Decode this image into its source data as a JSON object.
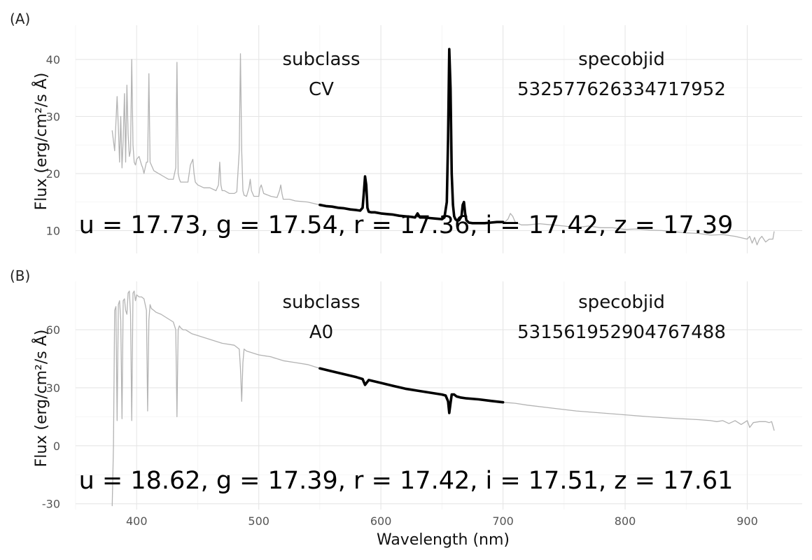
{
  "chart_data": [
    {
      "type": "line",
      "panel_label": "(A)",
      "xlabel": "Wavelength (nm)",
      "ylabel": "Flux (erg/cm²/s Å)",
      "xlim": [
        350,
        945
      ],
      "ylim": [
        6,
        46
      ],
      "x_ticks": [
        400,
        500,
        600,
        700,
        800,
        900
      ],
      "y_ticks": [
        10,
        20,
        30,
        40
      ],
      "grid": true,
      "series": [
        {
          "role": "full spectrum",
          "color": "#b3b3b3",
          "x": [
            380,
            382,
            384,
            385,
            386,
            387,
            388,
            389,
            390,
            391,
            392,
            393,
            394,
            395,
            396,
            397,
            398,
            399,
            400,
            402,
            404,
            405,
            406,
            407,
            408,
            409,
            410,
            411,
            412,
            414,
            418,
            422,
            426,
            430,
            432,
            433,
            434,
            435,
            436,
            438,
            442,
            444,
            446,
            447,
            448,
            450,
            455,
            460,
            465,
            467,
            468,
            469,
            470,
            472,
            476,
            480,
            482,
            484,
            485,
            486,
            487,
            488,
            490,
            492,
            493,
            494,
            496,
            500,
            501,
            502,
            504,
            510,
            515,
            517,
            518,
            519,
            520,
            525,
            530,
            540,
            550
          ],
          "y": [
            27.5,
            24,
            33.5,
            28,
            22,
            30,
            21,
            26,
            34,
            22,
            35.5,
            27,
            23,
            24,
            40,
            25,
            22,
            21.5,
            22.5,
            23,
            21.5,
            21,
            20,
            21,
            22,
            22,
            37.5,
            22,
            21.5,
            20.5,
            20,
            19.5,
            19,
            19,
            21,
            39.5,
            20,
            19,
            18.5,
            18.5,
            18.5,
            21.5,
            22.5,
            20,
            18.5,
            18,
            17.5,
            17.5,
            17,
            18,
            22,
            18,
            17,
            17,
            16.5,
            16.5,
            16.8,
            24,
            41,
            24,
            17,
            16.2,
            16,
            17.5,
            19,
            17,
            16,
            16,
            17.5,
            18,
            16.5,
            16,
            15.8,
            17,
            18,
            16.5,
            15.5,
            15.5,
            15.2,
            15,
            14.5
          ]
        },
        {
          "role": "full spectrum",
          "color": "#b3b3b3",
          "x": [
            700,
            702,
            704,
            706,
            708,
            710,
            715,
            720,
            730,
            740,
            750,
            760,
            770,
            780,
            790,
            800,
            810,
            820,
            830,
            840,
            850,
            860,
            870,
            880,
            890,
            900,
            902,
            904,
            906,
            908,
            910,
            912,
            915,
            918,
            921,
            922
          ],
          "y": [
            11.5,
            11.6,
            12,
            13,
            12.5,
            11.5,
            11,
            11,
            11.2,
            11,
            10.8,
            10.5,
            10.8,
            10.5,
            10.5,
            10.2,
            10.3,
            10.1,
            10,
            9.8,
            9.6,
            9.5,
            9.2,
            9.3,
            9,
            8.5,
            9,
            7.8,
            8.8,
            7.5,
            8.5,
            9,
            8,
            8.5,
            8.5,
            9.8
          ]
        },
        {
          "role": "highlighted segment",
          "color": "#000000",
          "x": [
            550,
            555,
            560,
            565,
            570,
            575,
            580,
            583,
            585,
            586,
            587,
            588,
            589,
            590,
            592,
            595,
            600,
            605,
            610,
            615,
            620,
            625,
            628,
            630,
            632,
            635,
            640,
            645,
            650,
            652,
            654,
            655,
            656,
            657,
            658,
            659,
            660,
            661,
            662,
            664,
            666,
            667,
            668,
            669,
            670,
            672,
            675,
            680,
            685,
            690,
            695,
            700
          ],
          "y": [
            14.5,
            14.3,
            14.2,
            14,
            13.9,
            13.7,
            13.6,
            13.5,
            14,
            16.5,
            19.5,
            18,
            14,
            13.3,
            13.2,
            13.2,
            13,
            12.9,
            12.8,
            12.6,
            12.5,
            12.4,
            12.3,
            13,
            12.3,
            12.3,
            12.2,
            12.1,
            12,
            12.3,
            15,
            26,
            41.8,
            35,
            20,
            14.5,
            12.5,
            12,
            11.8,
            11.8,
            12.5,
            14.5,
            15,
            13,
            11.8,
            11.4,
            11.3,
            11.3,
            11.3,
            11.4,
            11.5,
            11.5
          ]
        }
      ],
      "labels": {
        "subclass_header": "subclass",
        "subclass_value": "CV",
        "specobjid_header": "specobjid",
        "specobjid_value": "532577626334717952",
        "magnitudes": "u = 17.73, g = 17.54, r = 17.36, i = 17.42, z = 17.39"
      }
    },
    {
      "type": "line",
      "panel_label": "(B)",
      "xlabel": "Wavelength (nm)",
      "ylabel": "Flux (erg/cm²/s Å)",
      "xlim": [
        350,
        945
      ],
      "ylim": [
        -33,
        85
      ],
      "x_ticks": [
        400,
        500,
        600,
        700,
        800,
        900
      ],
      "y_ticks": [
        -30,
        0,
        30,
        60
      ],
      "grid": true,
      "series": [
        {
          "role": "full spectrum",
          "color": "#b3b3b3",
          "x": [
            380,
            381,
            382,
            383,
            384,
            385,
            386,
            387,
            388,
            389,
            390,
            391,
            392,
            393,
            394,
            395,
            396,
            397,
            398,
            399,
            400,
            402,
            404,
            406,
            408,
            409,
            410,
            411,
            412,
            414,
            416,
            420,
            425,
            430,
            432,
            433,
            434,
            435,
            436,
            438,
            440,
            445,
            450,
            455,
            460,
            470,
            480,
            484,
            485,
            486,
            487,
            488,
            490,
            495,
            500,
            510,
            520,
            530,
            540,
            550
          ],
          "y": [
            -31,
            0,
            70,
            72,
            13,
            73,
            75,
            65,
            14,
            75,
            76,
            70,
            68,
            79,
            80,
            68,
            13,
            79,
            80,
            75,
            78,
            77,
            77,
            76,
            70,
            18,
            65,
            73,
            71,
            70,
            69,
            68,
            66,
            64,
            60,
            15,
            60,
            62,
            61,
            60,
            60,
            58,
            57,
            56,
            55,
            53,
            52,
            50,
            40,
            23,
            43,
            50,
            49,
            48,
            47,
            46,
            44,
            43,
            42,
            40
          ]
        },
        {
          "role": "full spectrum",
          "color": "#b3b3b3",
          "x": [
            700,
            710,
            720,
            740,
            760,
            780,
            800,
            820,
            840,
            860,
            870,
            875,
            880,
            885,
            890,
            895,
            900,
            902,
            905,
            910,
            915,
            918,
            920,
            922
          ],
          "y": [
            22.5,
            22,
            21,
            19.5,
            18,
            17,
            16,
            15,
            14.2,
            13.5,
            13,
            12.5,
            13,
            11.5,
            13,
            11,
            13,
            9.5,
            12,
            12.5,
            12.5,
            12,
            12.5,
            8
          ]
        },
        {
          "role": "highlighted segment",
          "color": "#000000",
          "x": [
            550,
            560,
            570,
            580,
            585,
            587,
            590,
            600,
            610,
            620,
            630,
            640,
            650,
            653,
            655,
            656,
            657,
            658,
            660,
            662,
            665,
            670,
            680,
            690,
            700
          ],
          "y": [
            40,
            38.5,
            37,
            35.5,
            34.5,
            31.5,
            34,
            32.5,
            31,
            29.5,
            28.5,
            27.5,
            26.5,
            26,
            23,
            17,
            22,
            26.5,
            26.5,
            25.5,
            25,
            24.5,
            24,
            23.2,
            22.5
          ]
        }
      ],
      "labels": {
        "subclass_header": "subclass",
        "subclass_value": "A0",
        "specobjid_header": "specobjid",
        "specobjid_value": "531561952904767488",
        "magnitudes": "u = 18.62, g = 17.39, r = 17.42, i = 17.51, z = 17.61"
      }
    }
  ]
}
